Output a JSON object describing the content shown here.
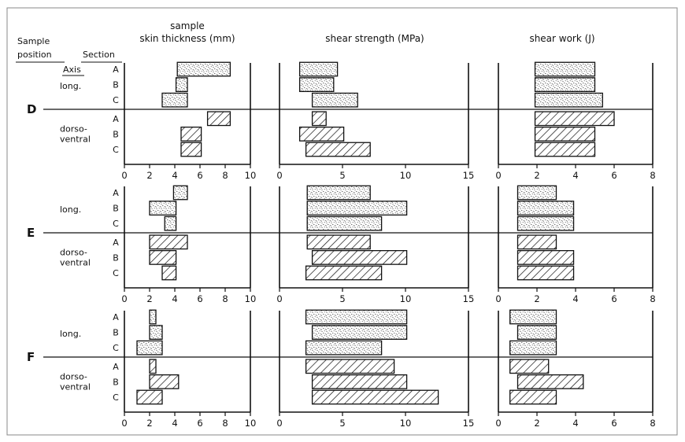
{
  "chart_data": {
    "type": "bar",
    "orientation": "horizontal",
    "grid": false,
    "header": {
      "sample_line1": "Sample",
      "sample_line2": "position",
      "section": "Section",
      "axis": "Axis"
    },
    "sections": [
      "A",
      "B",
      "C"
    ],
    "axis_groups": [
      {
        "label": "long.",
        "label_lines": [
          "long."
        ],
        "fill": "stippled"
      },
      {
        "label": "dorso-ventral",
        "label_lines": [
          "dorso-",
          "ventral"
        ],
        "fill": "hatched"
      }
    ],
    "panels": [
      {
        "title_lines": [
          "sample",
          "skin thickness (mm)"
        ],
        "xlim": [
          0,
          10
        ],
        "ticks": [
          "0",
          "2",
          "4",
          "6",
          "8",
          "10"
        ]
      },
      {
        "title_lines": [
          "shear strength (MPa)"
        ],
        "xlim": [
          0,
          15
        ],
        "ticks": [
          "0",
          "5",
          "10",
          "15"
        ]
      },
      {
        "title_lines": [
          "shear work (J)"
        ],
        "xlim": [
          0,
          8
        ],
        "ticks": [
          "0",
          "2",
          "4",
          "6",
          "8"
        ]
      }
    ],
    "groups": [
      {
        "position": "D",
        "data": [
          [
            [
              [
                4.2,
                8.4
              ],
              [
                4.1,
                5.0
              ],
              [
                3.0,
                5.0
              ]
            ],
            [
              [
                6.6,
                8.4
              ],
              [
                4.5,
                6.1
              ],
              [
                4.5,
                6.1
              ]
            ]
          ],
          [
            [
              [
                1.6,
                4.6
              ],
              [
                1.6,
                4.3
              ],
              [
                2.6,
                6.2
              ]
            ],
            [
              [
                2.6,
                3.7
              ],
              [
                1.6,
                5.1
              ],
              [
                2.1,
                7.2
              ]
            ]
          ],
          [
            [
              [
                1.9,
                5.0
              ],
              [
                1.9,
                5.0
              ],
              [
                1.9,
                5.4
              ]
            ],
            [
              [
                1.9,
                6.0
              ],
              [
                1.9,
                5.0
              ],
              [
                1.9,
                5.0
              ]
            ]
          ]
        ]
      },
      {
        "position": "E",
        "data": [
          [
            [
              [
                3.9,
                5.0
              ],
              [
                2.0,
                4.1
              ],
              [
                3.2,
                4.1
              ]
            ],
            [
              [
                2.0,
                5.0
              ],
              [
                2.0,
                4.1
              ],
              [
                3.0,
                4.1
              ]
            ]
          ],
          [
            [
              [
                2.2,
                7.2
              ],
              [
                2.2,
                10.1
              ],
              [
                2.2,
                8.1
              ]
            ],
            [
              [
                2.2,
                7.2
              ],
              [
                2.6,
                10.1
              ],
              [
                2.1,
                8.1
              ]
            ]
          ],
          [
            [
              [
                1.0,
                3.0
              ],
              [
                1.0,
                3.9
              ],
              [
                1.0,
                3.9
              ]
            ],
            [
              [
                1.0,
                3.0
              ],
              [
                1.0,
                3.9
              ],
              [
                1.0,
                3.9
              ]
            ]
          ]
        ]
      },
      {
        "position": "F",
        "data": [
          [
            [
              [
                2.0,
                2.5
              ],
              [
                2.0,
                3.0
              ],
              [
                1.0,
                3.0
              ]
            ],
            [
              [
                2.0,
                2.5
              ],
              [
                2.0,
                4.3
              ],
              [
                1.0,
                3.0
              ]
            ]
          ],
          [
            [
              [
                2.1,
                10.1
              ],
              [
                2.6,
                10.1
              ],
              [
                2.1,
                8.1
              ]
            ],
            [
              [
                2.1,
                9.1
              ],
              [
                2.6,
                10.1
              ],
              [
                2.6,
                12.6
              ]
            ]
          ],
          [
            [
              [
                0.6,
                3.0
              ],
              [
                1.0,
                3.0
              ],
              [
                0.6,
                3.0
              ]
            ],
            [
              [
                0.6,
                2.6
              ],
              [
                1.0,
                4.4
              ],
              [
                0.6,
                3.0
              ]
            ]
          ]
        ]
      }
    ]
  }
}
